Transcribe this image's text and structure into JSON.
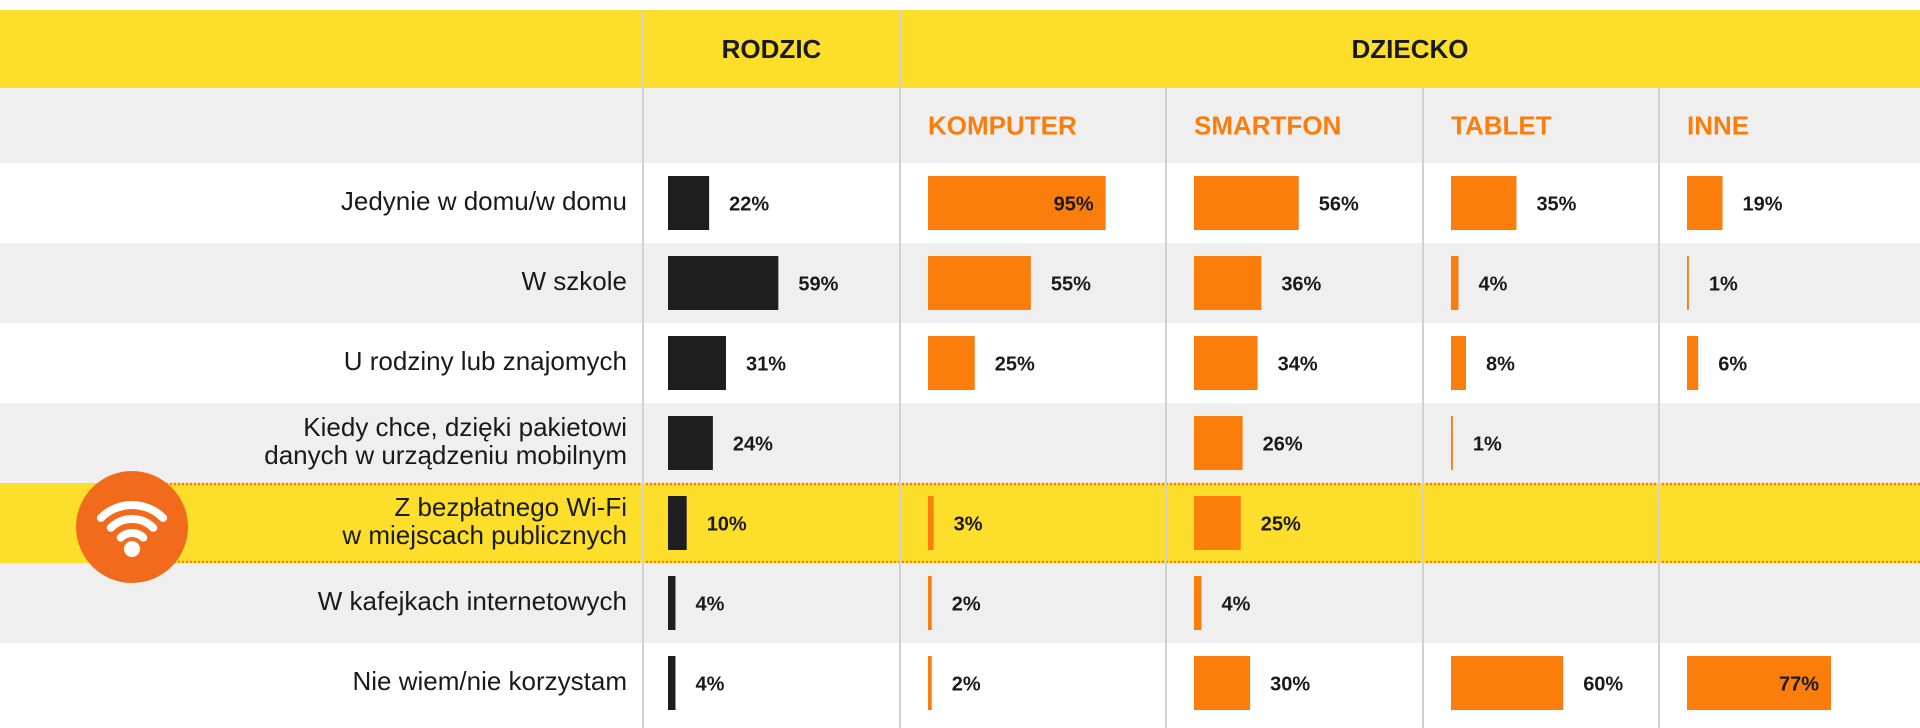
{
  "groups": [
    "RODZIC",
    "DZIECKO"
  ],
  "columns": [
    "KOMPUTER",
    "SMARTFON",
    "TABLET",
    "INNE"
  ],
  "colors": {
    "parent": "#1e1e1e",
    "child": "#fb7d0c",
    "header": "#fddf2b",
    "highlight": "#fddf2b"
  },
  "rows": [
    {
      "label": [
        "Jedynie w domu/w domu"
      ],
      "values": [
        22,
        95,
        56,
        35,
        19
      ],
      "value_labels": [
        "22%",
        "95%",
        "56%",
        "35%",
        "19%"
      ]
    },
    {
      "label": [
        "W szkole"
      ],
      "values": [
        59,
        55,
        36,
        4,
        1
      ],
      "value_labels": [
        "59%",
        "55%",
        "36%",
        "4%",
        "1%"
      ]
    },
    {
      "label": [
        "U rodziny lub znajomych"
      ],
      "values": [
        31,
        25,
        34,
        8,
        6
      ],
      "value_labels": [
        "31%",
        "25%",
        "34%",
        "8%",
        "6%"
      ]
    },
    {
      "label": [
        "Kiedy chce, dzięki pakietowi",
        "danych w urządzeniu  mobilnym"
      ],
      "values": [
        24,
        null,
        26,
        1,
        null
      ],
      "value_labels": [
        "24%",
        null,
        "26%",
        "1%",
        null
      ]
    },
    {
      "label": [
        "Z bezpłatnego Wi-Fi",
        "w miejscach publicznych"
      ],
      "values": [
        10,
        3,
        25,
        null,
        null
      ],
      "value_labels": [
        "10%",
        "3%",
        "25%",
        null,
        null
      ],
      "highlight": true
    },
    {
      "label": [
        "W kafejkach internetowych"
      ],
      "values": [
        4,
        2,
        4,
        null,
        null
      ],
      "value_labels": [
        "4%",
        "2%",
        "4%",
        null,
        null
      ]
    },
    {
      "label": [
        "Nie wiem/nie korzystam"
      ],
      "values": [
        4,
        2,
        30,
        60,
        77
      ],
      "value_labels": [
        "4%",
        "2%",
        "30%",
        "60%",
        "77%"
      ]
    }
  ]
}
